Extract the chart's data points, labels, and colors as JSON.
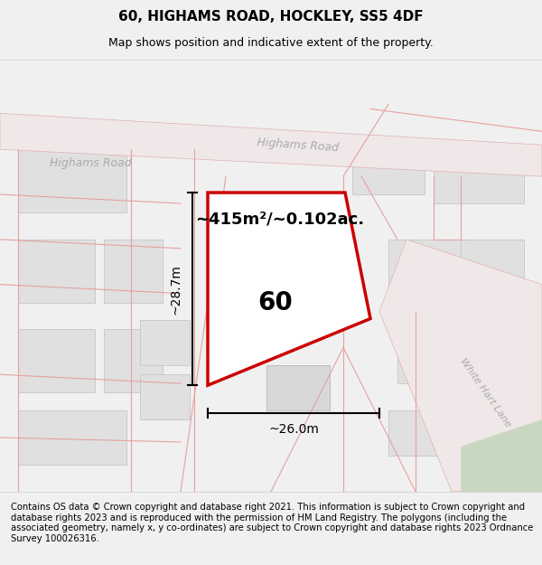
{
  "title": "60, HIGHAMS ROAD, HOCKLEY, SS5 4DF",
  "subtitle": "Map shows position and indicative extent of the property.",
  "area_label": "~415m²/~0.102ac.",
  "property_number": "60",
  "dim_height": "~28.7m",
  "dim_width": "~26.0m",
  "footer": "Contains OS data © Crown copyright and database right 2021. This information is subject to Crown copyright and database rights 2023 and is reproduced with the permission of HM Land Registry. The polygons (including the associated geometry, namely x, y co-ordinates) are subject to Crown copyright and database rights 2023 Ordnance Survey 100026316.",
  "bg_color": "#f5f5f5",
  "map_bg": "#ffffff",
  "road_color": "#e8a0a0",
  "road_center_color": "#e0b0b0",
  "property_polygon_color": "#cc0000",
  "road_label_color": "#888888",
  "property_fill": "rgba(255,255,255,0.0)",
  "title_fontsize": 11,
  "subtitle_fontsize": 9,
  "footer_fontsize": 7.2
}
